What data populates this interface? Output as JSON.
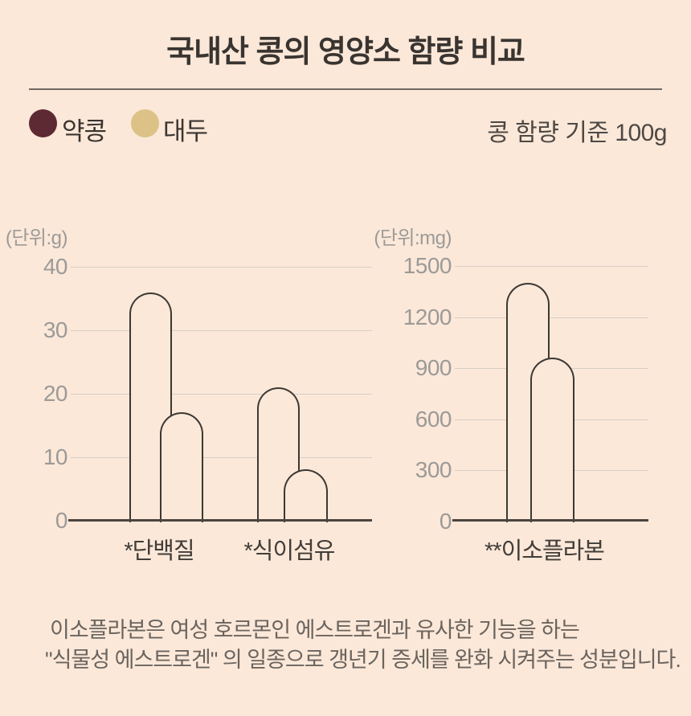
{
  "page": {
    "background": "#fbe8d9"
  },
  "header": {
    "title": "국내산 콩의 영양소 함량 비교",
    "caption": "콩 함량 기준 100g"
  },
  "legend": {
    "items": [
      {
        "label": "약콩",
        "color": "#5d2a33"
      },
      {
        "label": "대두",
        "color": "#dcc287"
      }
    ]
  },
  "chart_data": [
    {
      "type": "bar",
      "unit_label": "(단위:g)",
      "categories": [
        "*단백질",
        "*식이섬유"
      ],
      "series": [
        {
          "name": "약콩",
          "values": [
            36,
            21
          ]
        },
        {
          "name": "대두",
          "values": [
            17,
            8
          ]
        }
      ],
      "ylim": [
        0,
        40
      ],
      "yticks": [
        "40",
        "30",
        "20",
        "10",
        "0"
      ],
      "grid": true,
      "bar_style": "outlined-rounded-top",
      "outline_color": "#3d3833"
    },
    {
      "type": "bar",
      "unit_label": "(단위:mg)",
      "categories": [
        "**이소플라본"
      ],
      "series": [
        {
          "name": "약콩",
          "values": [
            1400
          ]
        },
        {
          "name": "대두",
          "values": [
            960
          ]
        }
      ],
      "ylim": [
        0,
        1500
      ],
      "yticks": [
        "1500",
        "1200",
        "900",
        "600",
        "300",
        "0"
      ],
      "grid": true,
      "bar_style": "outlined-rounded-top",
      "outline_color": "#3d3833"
    }
  ],
  "footnote": {
    "lines": [
      "이소플라본은 여성 호르몬인 에스트로겐과 유사한 기능을 하는",
      "\"식물성 에스트로겐\" 의 일종으로 갱년기 증세를 완화 시켜주는 성분입니다."
    ]
  },
  "colors": {
    "background": "#fbe8d9",
    "title_text": "#393430",
    "tick_text": "#9c9a97",
    "gridline": "#d7cec5",
    "axis_baseline": "#4b4540",
    "bar_outline": "#3d3833",
    "footnote_text": "#6b645e"
  }
}
